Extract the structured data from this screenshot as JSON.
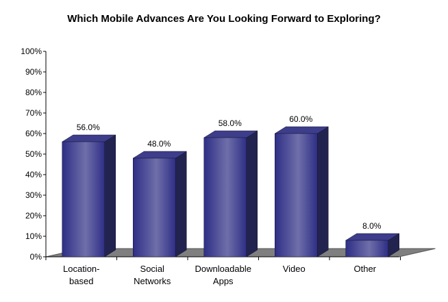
{
  "chart_data": {
    "type": "bar",
    "title": "Which Mobile Advances Are You Looking Forward to Exploring?",
    "xlabel": "",
    "ylabel": "",
    "categories": [
      [
        "Location-",
        "based"
      ],
      [
        "Social",
        "Networks"
      ],
      [
        "Downloadable",
        "Apps"
      ],
      [
        "Video"
      ],
      [
        "Other"
      ]
    ],
    "values": [
      56.0,
      48.0,
      58.0,
      60.0,
      8.0
    ],
    "value_labels": [
      "56.0%",
      "48.0%",
      "58.0%",
      "60.0%",
      "8.0%"
    ],
    "ylim": [
      0,
      100
    ],
    "yticks": [
      "0%",
      "10%",
      "20%",
      "30%",
      "40%",
      "50%",
      "60%",
      "70%",
      "80%",
      "90%",
      "100%"
    ],
    "grid": false,
    "legend": "none",
    "three_d": true,
    "colors": {
      "bar_front_dark": "#2e2e86",
      "bar_front_light": "#6f6faa",
      "bar_side": "#23234f",
      "bar_top": "#3d3d8c",
      "floor": "#7f7f7f",
      "axis": "#000000"
    }
  }
}
